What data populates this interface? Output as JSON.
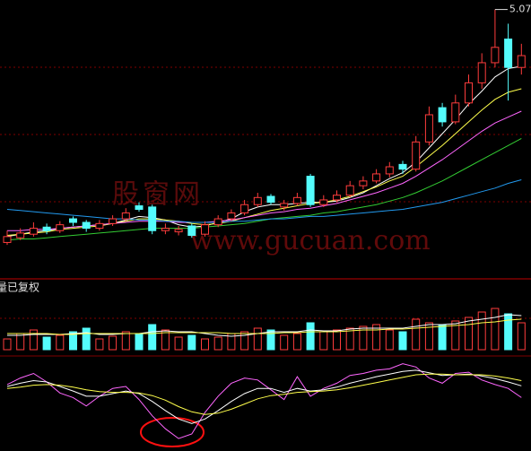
{
  "chart_data": [
    {
      "type": "candlestick",
      "ohlc": [
        [
          3.1,
          3.2,
          3.08,
          3.15
        ],
        [
          3.14,
          3.22,
          3.12,
          3.18
        ],
        [
          3.17,
          3.27,
          3.15,
          3.22
        ],
        [
          3.23,
          3.26,
          3.17,
          3.2
        ],
        [
          3.2,
          3.28,
          3.18,
          3.25
        ],
        [
          3.3,
          3.32,
          3.24,
          3.27
        ],
        [
          3.27,
          3.29,
          3.19,
          3.22
        ],
        [
          3.22,
          3.29,
          3.2,
          3.26
        ],
        [
          3.26,
          3.33,
          3.24,
          3.3
        ],
        [
          3.3,
          3.39,
          3.28,
          3.35
        ],
        [
          3.41,
          3.44,
          3.36,
          3.38
        ],
        [
          3.4,
          3.42,
          3.17,
          3.2
        ],
        [
          3.2,
          3.26,
          3.17,
          3.22
        ],
        [
          3.19,
          3.24,
          3.16,
          3.21
        ],
        [
          3.24,
          3.26,
          3.14,
          3.16
        ],
        [
          3.17,
          3.28,
          3.15,
          3.25
        ],
        [
          3.25,
          3.33,
          3.23,
          3.3
        ],
        [
          3.3,
          3.38,
          3.28,
          3.35
        ],
        [
          3.35,
          3.46,
          3.33,
          3.42
        ],
        [
          3.42,
          3.52,
          3.4,
          3.48
        ],
        [
          3.49,
          3.51,
          3.42,
          3.44
        ],
        [
          3.4,
          3.46,
          3.37,
          3.43
        ],
        [
          3.43,
          3.52,
          3.41,
          3.48
        ],
        [
          3.66,
          3.68,
          3.4,
          3.42
        ],
        [
          3.42,
          3.5,
          3.4,
          3.46
        ],
        [
          3.46,
          3.54,
          3.44,
          3.5
        ],
        [
          3.5,
          3.62,
          3.48,
          3.58
        ],
        [
          3.58,
          3.66,
          3.55,
          3.62
        ],
        [
          3.62,
          3.72,
          3.6,
          3.68
        ],
        [
          3.68,
          3.78,
          3.65,
          3.74
        ],
        [
          3.76,
          3.79,
          3.68,
          3.72
        ],
        [
          3.72,
          4.0,
          3.7,
          3.95
        ],
        [
          3.95,
          4.25,
          3.92,
          4.18
        ],
        [
          4.24,
          4.28,
          4.08,
          4.12
        ],
        [
          4.12,
          4.35,
          4.1,
          4.28
        ],
        [
          4.28,
          4.52,
          4.25,
          4.45
        ],
        [
          4.45,
          4.7,
          4.4,
          4.62
        ],
        [
          4.62,
          5.07,
          4.58,
          4.75
        ],
        [
          4.82,
          4.95,
          4.3,
          4.58
        ],
        [
          4.58,
          4.78,
          4.52,
          4.68
        ]
      ],
      "up_color": "#ff3c3c",
      "down_color": "#54fcfc",
      "ylim": [
        2.8,
        5.12
      ],
      "series": [
        {
          "color": "#ffffff",
          "values": [
            3.15,
            3.17,
            3.19,
            3.2,
            3.22,
            3.23,
            3.24,
            3.25,
            3.26,
            3.29,
            3.32,
            3.31,
            3.29,
            3.25,
            3.23,
            3.24,
            3.27,
            3.3,
            3.36,
            3.4,
            3.42,
            3.42,
            3.43,
            3.44,
            3.44,
            3.45,
            3.48,
            3.52,
            3.58,
            3.64,
            3.69,
            3.78,
            3.9,
            4.02,
            4.14,
            4.27,
            4.38,
            4.5,
            4.57,
            4.59
          ]
        },
        {
          "color": "#ffff4c",
          "values": [
            3.16,
            3.17,
            3.18,
            3.19,
            3.21,
            3.22,
            3.23,
            3.24,
            3.26,
            3.28,
            3.3,
            3.3,
            3.29,
            3.28,
            3.26,
            3.25,
            3.26,
            3.28,
            3.31,
            3.34,
            3.37,
            3.39,
            3.41,
            3.43,
            3.44,
            3.46,
            3.49,
            3.53,
            3.57,
            3.62,
            3.66,
            3.74,
            3.83,
            3.92,
            4.02,
            4.12,
            4.22,
            4.31,
            4.37,
            4.4
          ]
        },
        {
          "color": "#ff66ff",
          "values": [
            3.2,
            3.2,
            3.21,
            3.21,
            3.22,
            3.23,
            3.24,
            3.25,
            3.26,
            3.27,
            3.28,
            3.28,
            3.28,
            3.27,
            3.27,
            3.27,
            3.28,
            3.29,
            3.31,
            3.33,
            3.35,
            3.36,
            3.38,
            3.39,
            3.41,
            3.43,
            3.46,
            3.49,
            3.52,
            3.56,
            3.6,
            3.66,
            3.73,
            3.8,
            3.88,
            3.96,
            4.04,
            4.11,
            4.16,
            4.21
          ]
        },
        {
          "color": "#33cc33",
          "values": [
            3.12,
            3.13,
            3.13,
            3.14,
            3.15,
            3.16,
            3.17,
            3.18,
            3.19,
            3.2,
            3.21,
            3.22,
            3.22,
            3.22,
            3.22,
            3.23,
            3.24,
            3.25,
            3.26,
            3.28,
            3.3,
            3.31,
            3.32,
            3.33,
            3.35,
            3.36,
            3.38,
            3.4,
            3.42,
            3.45,
            3.48,
            3.52,
            3.57,
            3.62,
            3.68,
            3.74,
            3.8,
            3.86,
            3.92,
            3.98
          ]
        },
        {
          "color": "#2299ee",
          "values": [
            3.38,
            3.37,
            3.36,
            3.35,
            3.34,
            3.33,
            3.32,
            3.31,
            3.3,
            3.3,
            3.29,
            3.29,
            3.28,
            3.28,
            3.27,
            3.27,
            3.27,
            3.28,
            3.28,
            3.29,
            3.3,
            3.3,
            3.31,
            3.32,
            3.32,
            3.33,
            3.34,
            3.35,
            3.36,
            3.37,
            3.38,
            3.4,
            3.42,
            3.44,
            3.47,
            3.5,
            3.53,
            3.56,
            3.6,
            3.63
          ]
        }
      ]
    },
    {
      "type": "bar",
      "title": "量已复权",
      "values": [
        12,
        18,
        22,
        14,
        16,
        20,
        24,
        12,
        15,
        20,
        18,
        28,
        22,
        14,
        16,
        12,
        14,
        18,
        20,
        24,
        22,
        16,
        18,
        30,
        20,
        22,
        24,
        26,
        28,
        22,
        20,
        34,
        30,
        28,
        32,
        36,
        42,
        46,
        40,
        30
      ],
      "ylim": [
        0,
        60
      ],
      "series": [
        {
          "color": "#ffffff",
          "values": [
            16,
            16,
            17,
            17,
            17,
            18,
            19,
            17,
            17,
            18,
            18,
            20,
            21,
            20,
            20,
            18,
            16,
            15,
            16,
            18,
            20,
            20,
            20,
            22,
            21,
            21,
            23,
            24,
            24,
            24,
            24,
            26,
            28,
            28,
            29,
            32,
            34,
            36,
            39,
            38
          ]
        },
        {
          "color": "#ffff4c",
          "values": [
            18,
            18,
            18,
            18,
            17,
            17,
            18,
            18,
            18,
            18,
            18,
            18,
            19,
            19,
            19,
            19,
            19,
            18,
            18,
            18,
            18,
            19,
            19,
            20,
            20,
            20,
            21,
            22,
            22,
            23,
            23,
            24,
            25,
            26,
            27,
            28,
            30,
            31,
            33,
            34
          ]
        }
      ]
    },
    {
      "type": "line",
      "ylim": [
        -20,
        115
      ],
      "series": [
        {
          "color": "#ff66ff",
          "values": [
            78,
            88,
            95,
            82,
            65,
            58,
            45,
            60,
            72,
            75,
            55,
            30,
            10,
            -5,
            2,
            35,
            60,
            80,
            88,
            85,
            70,
            55,
            90,
            60,
            72,
            80,
            92,
            95,
            100,
            102,
            110,
            105,
            88,
            80,
            95,
            97,
            85,
            78,
            72,
            58
          ]
        },
        {
          "color": "#ffffff",
          "values": [
            75,
            80,
            84,
            82,
            75,
            68,
            60,
            60,
            64,
            68,
            64,
            52,
            38,
            25,
            18,
            25,
            38,
            52,
            64,
            72,
            72,
            66,
            72,
            68,
            70,
            74,
            80,
            85,
            90,
            94,
            98,
            100,
            96,
            92,
            93,
            94,
            91,
            87,
            82,
            76
          ]
        },
        {
          "color": "#ffff4c",
          "values": [
            72,
            74,
            77,
            78,
            77,
            74,
            70,
            67,
            66,
            66,
            65,
            61,
            54,
            44,
            36,
            32,
            34,
            40,
            48,
            56,
            61,
            63,
            66,
            67,
            68,
            70,
            73,
            77,
            81,
            85,
            89,
            93,
            94,
            94,
            93,
            93,
            93,
            91,
            88,
            84
          ]
        }
      ]
    }
  ],
  "watermark": {
    "site": "股窗网",
    "url": "www.gucuan.com"
  }
}
